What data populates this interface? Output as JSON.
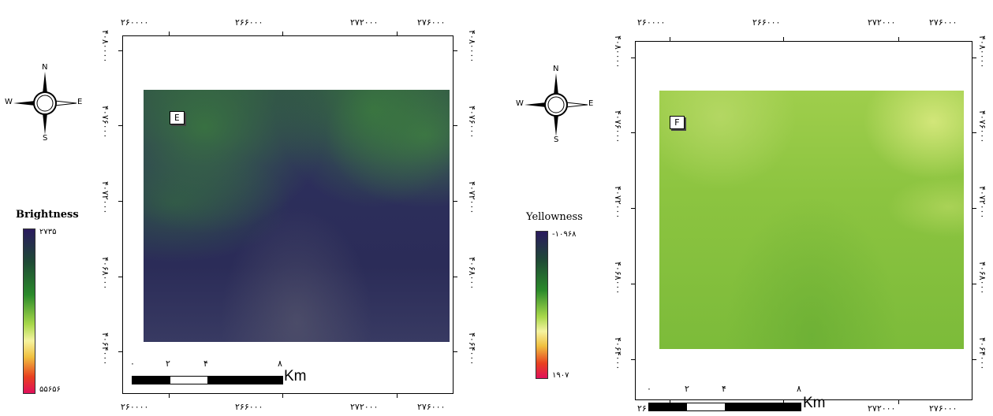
{
  "maps": [
    {
      "id": "E",
      "panel_label": "E",
      "legend": {
        "title": "Brightness",
        "max_label": "۲۷۳۵",
        "min_label": "۵۵۶۵۶",
        "colors": [
          "#2a1a5e",
          "#1f4a35",
          "#2a8a2a",
          "#a8d84a",
          "#f5f3a0",
          "#f0c040",
          "#e84020",
          "#e0105a"
        ]
      },
      "raster_colors": {
        "base": "#2d2f5c",
        "green": "#2f6a35"
      },
      "x_ticks": [
        "۲۶۰۰۰۰",
        "۲۶۶۰۰۰",
        "۲۷۲۰۰۰",
        "۲۷۶۰۰۰"
      ],
      "y_ticks": [
        "۴۰۸۰۰۰۰",
        "۴۰۷۶۰۰۰",
        "۴۰۷۲۰۰۰",
        "۴۰۶۸۰۰۰",
        "۴۰۶۴۰۰۰"
      ],
      "scale_numbers": [
        "۰",
        "۲",
        "۴",
        "۸"
      ],
      "scale_unit": "Km",
      "compass": {
        "n": "N",
        "s": "S",
        "e": "E",
        "w": "W"
      }
    },
    {
      "id": "F",
      "panel_label": "F",
      "legend": {
        "title": "Yellowness",
        "max_label": "-۱۰۹۶۸",
        "min_label": "۱۹۰۷",
        "colors": [
          "#2a1a5e",
          "#1f4a35",
          "#2a8a2a",
          "#a8d84a",
          "#f5f3a0",
          "#f0c040",
          "#e84020",
          "#e0105a"
        ]
      },
      "raster_colors": {
        "base": "#86c03a",
        "light": "#c8e07a"
      },
      "x_ticks": [
        "۲۶۰۰۰۰",
        "۲۶۶۰۰۰",
        "۲۷۲۰۰۰",
        "۲۷۶۰۰۰"
      ],
      "y_ticks": [
        "۴۰۸۰۰۰۰",
        "۴۰۷۶۰۰۰",
        "۴۰۷۲۰۰۰",
        "۴۰۶۸۰۰۰",
        "۴۰۶۴۰۰۰"
      ],
      "scale_numbers": [
        "۰",
        "۲",
        "۴",
        "۸"
      ],
      "scale_unit": "Km",
      "compass": {
        "n": "N",
        "s": "S",
        "e": "E",
        "w": "W"
      }
    }
  ]
}
